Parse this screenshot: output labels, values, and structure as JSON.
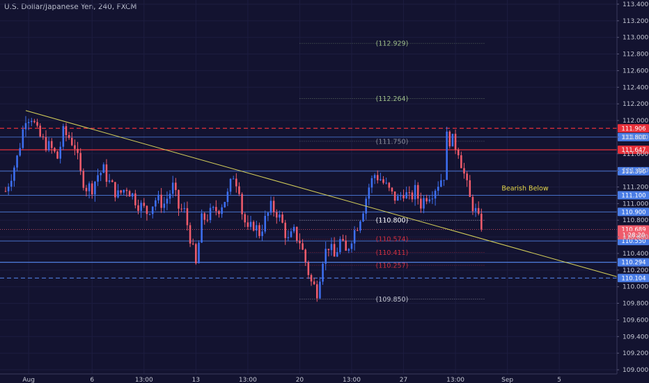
{
  "chart_data": {
    "type": "candlestick",
    "title": "U.S. Dollar/Japanese Yen, 240, FXCM",
    "colors": {
      "background": "#131330",
      "up": "#3d6ff0",
      "down": "#ef5b6b",
      "trendline": "#d8d25a",
      "grid": "#1d1d40",
      "text": "#c3c6d2"
    },
    "y_axis": {
      "range": [
        108.95,
        113.45
      ],
      "ticks": [
        "113.400",
        "113.200",
        "113.000",
        "112.800",
        "112.600",
        "112.400",
        "112.200",
        "112.000",
        "111.800",
        "111.600",
        "111.400",
        "111.200",
        "111.000",
        "110.800",
        "110.600",
        "110.400",
        "110.200",
        "110.000",
        "109.800",
        "109.600",
        "109.400",
        "109.200",
        "109.000"
      ]
    },
    "x_axis": {
      "range": [
        0,
        212
      ],
      "ticks": [
        {
          "x": 8,
          "label": "Aug"
        },
        {
          "x": 30,
          "label": "6"
        },
        {
          "x": 48,
          "label": "13:00"
        },
        {
          "x": 66,
          "label": "13"
        },
        {
          "x": 84,
          "label": "13:00"
        },
        {
          "x": 102,
          "label": "20"
        },
        {
          "x": 120,
          "label": "13:00"
        },
        {
          "x": 138,
          "label": "27"
        },
        {
          "x": 156,
          "label": "13:00"
        },
        {
          "x": 174,
          "label": "Sep"
        },
        {
          "x": 192,
          "label": "5"
        }
      ]
    },
    "anchors": [
      [
        0,
        111.15
      ],
      [
        4,
        111.55
      ],
      [
        7,
        112.05
      ],
      [
        9,
        112.05
      ],
      [
        11,
        111.85
      ],
      [
        13,
        111.75
      ],
      [
        16,
        111.65
      ],
      [
        18,
        111.55
      ],
      [
        20,
        111.85
      ],
      [
        22,
        111.8
      ],
      [
        24,
        111.7
      ],
      [
        26,
        111.35
      ],
      [
        28,
        111.2
      ],
      [
        30,
        111.2
      ],
      [
        32,
        111.35
      ],
      [
        34,
        111.4
      ],
      [
        36,
        111.25
      ],
      [
        39,
        111.1
      ],
      [
        42,
        111.2
      ],
      [
        46,
        111.0
      ],
      [
        49,
        110.9
      ],
      [
        52,
        111.05
      ],
      [
        55,
        111.0
      ],
      [
        58,
        111.2
      ],
      [
        60,
        110.95
      ],
      [
        62,
        110.9
      ],
      [
        64,
        110.6
      ],
      [
        66,
        110.25
      ],
      [
        68,
        110.8
      ],
      [
        72,
        110.9
      ],
      [
        74,
        110.95
      ],
      [
        77,
        111.1
      ],
      [
        79,
        111.35
      ],
      [
        81,
        111.2
      ],
      [
        82,
        110.9
      ],
      [
        84,
        110.65
      ],
      [
        86,
        110.75
      ],
      [
        88,
        110.65
      ],
      [
        90,
        110.8
      ],
      [
        92,
        110.95
      ],
      [
        94,
        110.9
      ],
      [
        96,
        110.75
      ],
      [
        98,
        110.55
      ],
      [
        100,
        110.65
      ],
      [
        102,
        110.55
      ],
      [
        104,
        110.3
      ],
      [
        106,
        110.05
      ],
      [
        108,
        109.95
      ],
      [
        110,
        110.35
      ],
      [
        112,
        110.5
      ],
      [
        114,
        110.35
      ],
      [
        116,
        110.55
      ],
      [
        118,
        110.4
      ],
      [
        120,
        110.6
      ],
      [
        122,
        110.75
      ],
      [
        124,
        110.95
      ],
      [
        126,
        111.2
      ],
      [
        128,
        111.35
      ],
      [
        130,
        111.3
      ],
      [
        132,
        111.2
      ],
      [
        134,
        111.1
      ],
      [
        136,
        111.05
      ],
      [
        138,
        111.15
      ],
      [
        140,
        111.05
      ],
      [
        142,
        111.15
      ],
      [
        144,
        111.0
      ],
      [
        146,
        111.1
      ],
      [
        148,
        111.15
      ],
      [
        150,
        111.25
      ],
      [
        152,
        111.35
      ],
      [
        153,
        111.8
      ],
      [
        155,
        111.75
      ],
      [
        157,
        111.65
      ],
      [
        159,
        111.35
      ],
      [
        161,
        111.05
      ],
      [
        163,
        110.9
      ],
      [
        165,
        110.689
      ]
    ],
    "horizontal_levels": [
      {
        "price": 111.906,
        "label": "111.906",
        "color": "#e8303a",
        "dash": "6,4",
        "width": 1.2,
        "badge": "#e8303a"
      },
      {
        "price": 111.8,
        "label": "111.800",
        "color": "#4f7fe0",
        "dash": "",
        "width": 0.8,
        "badge": "#4a7de6"
      },
      {
        "price": 111.647,
        "label": "111.647",
        "color": "#e8303a",
        "dash": "",
        "width": 1.3,
        "badge": "#e8303a"
      },
      {
        "price": 111.39,
        "label": "111.390",
        "color": "#4f7fe0",
        "dash": "",
        "width": 0.8,
        "badge": "#4a7de6"
      },
      {
        "price": 111.1,
        "label": "111.100",
        "color": "#4f7fe0",
        "dash": "",
        "width": 0.8,
        "badge": "#4a7de6"
      },
      {
        "price": 110.9,
        "label": "110.900",
        "color": "#4f7fe0",
        "dash": "",
        "width": 0.8,
        "badge": "#4a7de6"
      },
      {
        "price": 110.689,
        "label": "110.689",
        "color": "#ef5b6b",
        "dash": "1,2",
        "width": 0.8,
        "badge": "#ef5b6b"
      },
      {
        "price": 110.55,
        "label": "110.550",
        "color": "#4f7fe0",
        "dash": "",
        "width": 0.8,
        "badge": "#4a7de6"
      },
      {
        "price": 110.294,
        "label": "110.294",
        "color": "#4f7fe0",
        "dash": "",
        "width": 1.2,
        "badge": "#4a7de6"
      },
      {
        "price": 110.104,
        "label": "110.104",
        "color": "#4f7fe0",
        "dash": "6,4",
        "width": 1.2,
        "badge": "#4a7de6"
      }
    ],
    "countdown": {
      "price": 110.62,
      "label": "1 28:20",
      "color": "#ef5b6b"
    },
    "fib_levels": [
      {
        "price": 112.929,
        "label": "(112.929)",
        "color": "#9fbf8a"
      },
      {
        "price": 112.264,
        "label": "(112.264)",
        "color": "#9fbf8a"
      },
      {
        "price": 111.75,
        "label": "(111.750)",
        "color": "#8b8e9c"
      },
      {
        "price": 110.8,
        "label": "(110.800)",
        "color": "#ffffff"
      },
      {
        "price": 110.574,
        "label": "(110.574)",
        "color": "#d03040"
      },
      {
        "price": 110.411,
        "label": "(110.411)",
        "color": "#d03040"
      },
      {
        "price": 110.257,
        "label": "(110.257)",
        "color": "#d03040"
      },
      {
        "price": 109.85,
        "label": "(109.850)",
        "color": "#c3c6d2"
      }
    ],
    "fib_x_range": [
      102,
      166
    ],
    "trendline": {
      "from": [
        7,
        112.12
      ],
      "to": [
        212,
        110.12
      ]
    },
    "annotations": [
      {
        "text": "Bearish Below",
        "price": 111.16,
        "x": 172,
        "color": "#e6d84a"
      }
    ]
  }
}
